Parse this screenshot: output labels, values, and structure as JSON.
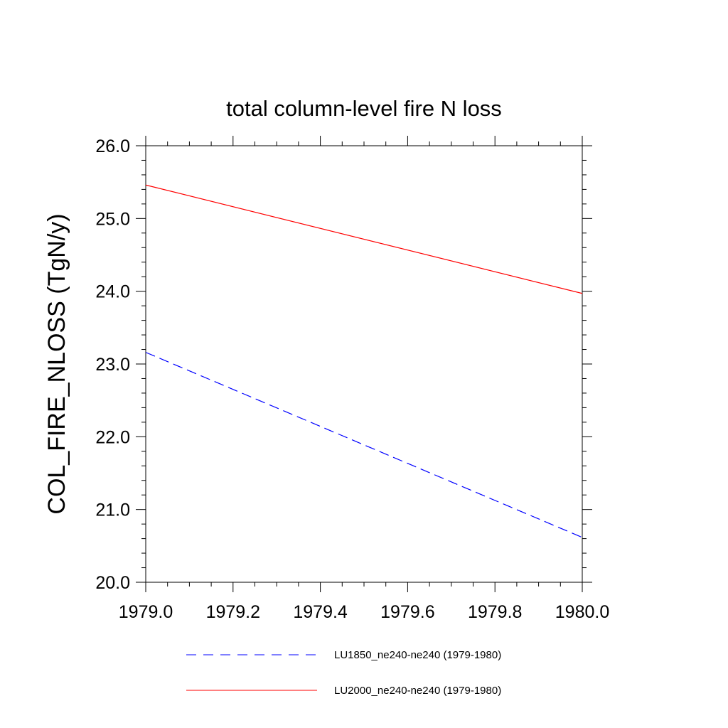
{
  "chart_data": {
    "type": "line",
    "title": "total column-level fire N loss",
    "xlabel": "",
    "ylabel": "COL_FIRE_NLOSS  (TgN/y)",
    "xlim": [
      1979.0,
      1980.0
    ],
    "ylim": [
      20.0,
      26.0
    ],
    "x_ticks": [
      "1979.0",
      "1979.2",
      "1979.4",
      "1979.6",
      "1979.8",
      "1980.0"
    ],
    "y_ticks": [
      "20.0",
      "21.0",
      "22.0",
      "23.0",
      "24.0",
      "25.0",
      "26.0"
    ],
    "grid": false,
    "legend_position": "bottom",
    "series": [
      {
        "name": "LU1850_ne240-ne240 (1979-1980)",
        "color": "#0000ff",
        "style": "dashed",
        "x": [
          1979.0,
          1979.9986
        ],
        "values": [
          23.16,
          20.62
        ]
      },
      {
        "name": "LU2000_ne240-ne240 (1979-1980)",
        "color": "#ff0000",
        "style": "solid",
        "x": [
          1979.0,
          1980.0
        ],
        "values": [
          25.46,
          23.97
        ]
      }
    ]
  }
}
